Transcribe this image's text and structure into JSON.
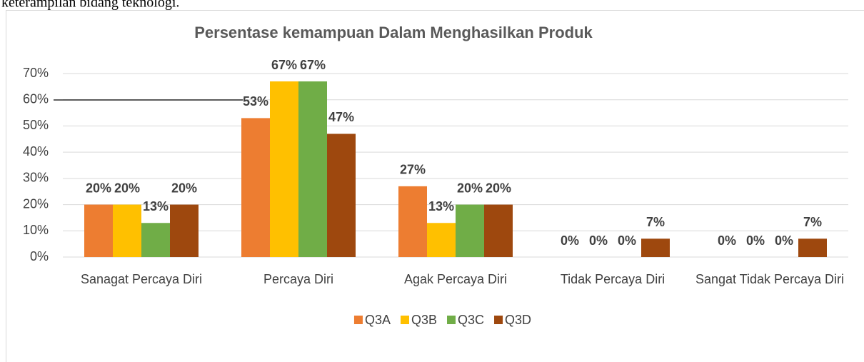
{
  "header_text": "keterampilan bidang teknologi.",
  "chart_data": {
    "type": "bar",
    "title": "Persentase kemampuan Dalam Menghasilkan Produk",
    "categories": [
      "Sanagat Percaya Diri",
      "Percaya Diri",
      "Agak Percaya Diri",
      "Tidak Percaya Diri",
      "Sangat Tidak Percaya Diri"
    ],
    "series": [
      {
        "name": "Q3A",
        "color": "#ed7d31",
        "values": [
          20,
          53,
          27,
          0,
          0
        ],
        "value_labels": [
          "20%",
          "53%",
          "27%",
          "0%",
          "0%"
        ]
      },
      {
        "name": "Q3B",
        "color": "#ffc000",
        "values": [
          20,
          67,
          13,
          0,
          0
        ],
        "value_labels": [
          "20%",
          "67%",
          "13%",
          "0%",
          "0%"
        ]
      },
      {
        "name": "Q3C",
        "color": "#70ad47",
        "values": [
          13,
          67,
          20,
          0,
          0
        ],
        "value_labels": [
          "13%",
          "67%",
          "20%",
          "0%",
          "0%"
        ]
      },
      {
        "name": "Q3D",
        "color": "#9e480e",
        "values": [
          20,
          47,
          20,
          7,
          7
        ],
        "value_labels": [
          "20%",
          "47%",
          "20%",
          "7%",
          "7%"
        ]
      }
    ],
    "ylim": [
      0,
      70
    ],
    "yticks": [
      {
        "value": 0,
        "label": "0%"
      },
      {
        "value": 10,
        "label": "10%"
      },
      {
        "value": 20,
        "label": "20%"
      },
      {
        "value": 30,
        "label": "30%"
      },
      {
        "value": 40,
        "label": "40%"
      },
      {
        "value": 50,
        "label": "50%"
      },
      {
        "value": 60,
        "label": "60%"
      },
      {
        "value": 70,
        "label": "70%"
      }
    ],
    "grid": true,
    "legend": "bottom"
  }
}
